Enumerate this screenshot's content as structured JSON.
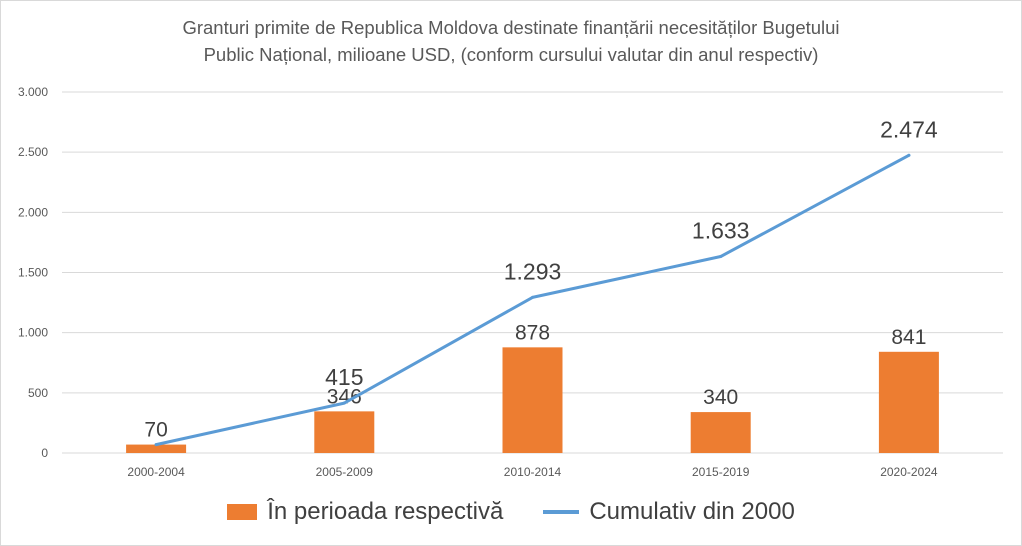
{
  "chart_data": {
    "type": "bar",
    "title_line1": "Granturi primite de Republica Moldova destinate finanțării necesităților Bugetului",
    "title_line2": "Public Național, milioane USD,  (conform cursului valutar din anul respectiv)",
    "categories": [
      "2000-2004",
      "2005-2009",
      "2010-2014",
      "2015-2019",
      "2020-2024"
    ],
    "series": [
      {
        "name": "În perioada respectivă",
        "type": "bar",
        "color": "#ed7d31",
        "values": [
          70,
          346,
          878,
          340,
          841
        ],
        "labels": [
          "70",
          "346",
          "878",
          "340",
          "841"
        ]
      },
      {
        "name": "Cumulativ din 2000",
        "type": "line",
        "color": "#5b9bd5",
        "values": [
          70,
          415,
          1293,
          1633,
          2474
        ],
        "labels": [
          "",
          "415",
          "1.293",
          "1.633",
          "2.474"
        ]
      }
    ],
    "y_ticks": [
      0,
      500,
      1000,
      1500,
      2000,
      2500,
      3000
    ],
    "y_tick_labels": [
      "0",
      "500",
      "1.000",
      "1.500",
      "2.000",
      "2.500",
      "3.000"
    ],
    "ylim": [
      0,
      3000
    ],
    "grid": true,
    "legend": "bottom"
  }
}
